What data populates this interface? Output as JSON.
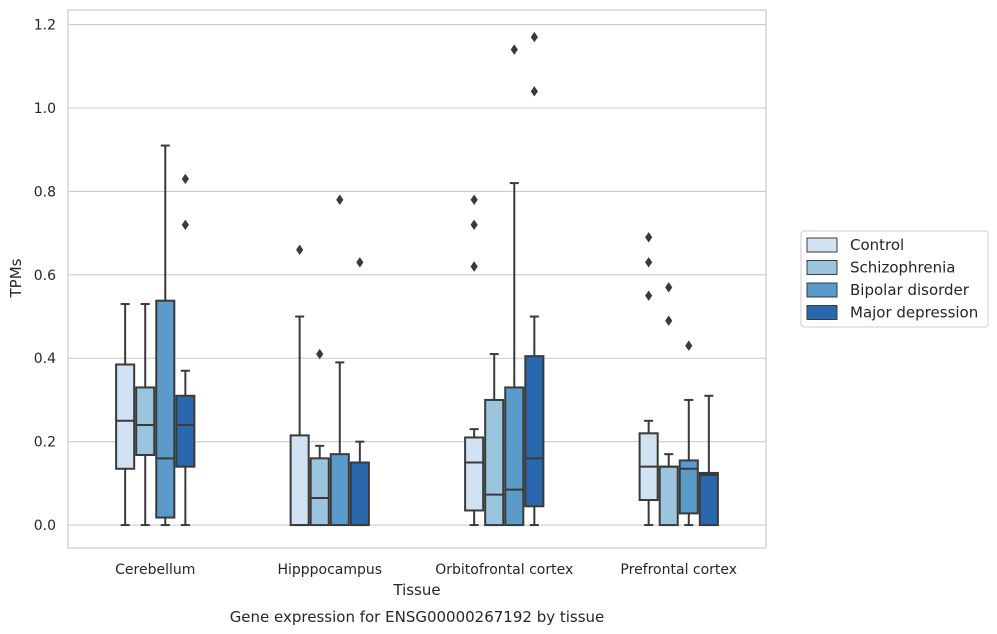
{
  "caption": "Gene expression for ENSG00000267192 by tissue",
  "chart_data": {
    "type": "box",
    "xlabel": "Tissue",
    "ylabel": "TPMs",
    "ylim": [
      -0.055,
      1.235
    ],
    "yticks": [
      0.0,
      0.2,
      0.4,
      0.6,
      0.8,
      1.0,
      1.2
    ],
    "ytick_labels": [
      "0.0",
      "0.2",
      "0.4",
      "0.6",
      "0.8",
      "1.0",
      "1.2"
    ],
    "grid": "horizontal",
    "legend_position": "right",
    "categories": [
      "Cerebellum",
      "Hipppocampus",
      "Orbitofrontal cortex",
      "Prefrontal cortex"
    ],
    "series": [
      {
        "name": "Control",
        "color": "#d1e2f2",
        "boxes": [
          {
            "whislo": 0.0,
            "q1": 0.135,
            "med": 0.25,
            "q3": 0.385,
            "whishi": 0.53,
            "fliers": []
          },
          {
            "whislo": 0.0,
            "q1": 0.0,
            "med": 0.0,
            "q3": 0.215,
            "whishi": 0.5,
            "fliers": [
              0.66
            ]
          },
          {
            "whislo": 0.0,
            "q1": 0.035,
            "med": 0.15,
            "q3": 0.21,
            "whishi": 0.23,
            "fliers": [
              0.62,
              0.72,
              0.78
            ]
          },
          {
            "whislo": 0.0,
            "q1": 0.06,
            "med": 0.14,
            "q3": 0.22,
            "whishi": 0.25,
            "fliers": [
              0.55,
              0.63,
              0.69
            ]
          }
        ]
      },
      {
        "name": "Schizophrenia",
        "color": "#9bc5df",
        "boxes": [
          {
            "whislo": 0.0,
            "q1": 0.168,
            "med": 0.24,
            "q3": 0.33,
            "whishi": 0.53,
            "fliers": []
          },
          {
            "whislo": 0.0,
            "q1": 0.0,
            "med": 0.065,
            "q3": 0.16,
            "whishi": 0.19,
            "fliers": [
              0.41
            ]
          },
          {
            "whislo": 0.0,
            "q1": 0.0,
            "med": 0.073,
            "q3": 0.3,
            "whishi": 0.41,
            "fliers": []
          },
          {
            "whislo": 0.0,
            "q1": 0.0,
            "med": 0.14,
            "q3": 0.14,
            "whishi": 0.17,
            "fliers": [
              0.49,
              0.57
            ]
          }
        ]
      },
      {
        "name": "Bipolar disorder",
        "color": "#5a9bc9",
        "boxes": [
          {
            "whislo": 0.0,
            "q1": 0.018,
            "med": 0.16,
            "q3": 0.538,
            "whishi": 0.91,
            "fliers": []
          },
          {
            "whislo": 0.0,
            "q1": 0.0,
            "med": 0.0,
            "q3": 0.17,
            "whishi": 0.39,
            "fliers": [
              0.78
            ]
          },
          {
            "whislo": 0.0,
            "q1": 0.0,
            "med": 0.085,
            "q3": 0.33,
            "whishi": 0.82,
            "fliers": [
              1.14
            ]
          },
          {
            "whislo": 0.0,
            "q1": 0.028,
            "med": 0.135,
            "q3": 0.155,
            "whishi": 0.3,
            "fliers": [
              0.43
            ]
          }
        ]
      },
      {
        "name": "Major depression",
        "color": "#2a68ad",
        "boxes": [
          {
            "whislo": 0.0,
            "q1": 0.14,
            "med": 0.24,
            "q3": 0.31,
            "whishi": 0.37,
            "fliers": [
              0.72,
              0.83
            ]
          },
          {
            "whislo": 0.0,
            "q1": 0.0,
            "med": 0.0,
            "q3": 0.15,
            "whishi": 0.2,
            "fliers": [
              0.63
            ]
          },
          {
            "whislo": 0.0,
            "q1": 0.045,
            "med": 0.16,
            "q3": 0.405,
            "whishi": 0.5,
            "fliers": [
              1.04,
              1.17
            ]
          },
          {
            "whislo": 0.0,
            "q1": 0.0,
            "med": 0.12,
            "q3": 0.125,
            "whishi": 0.31,
            "fliers": []
          }
        ]
      }
    ]
  }
}
